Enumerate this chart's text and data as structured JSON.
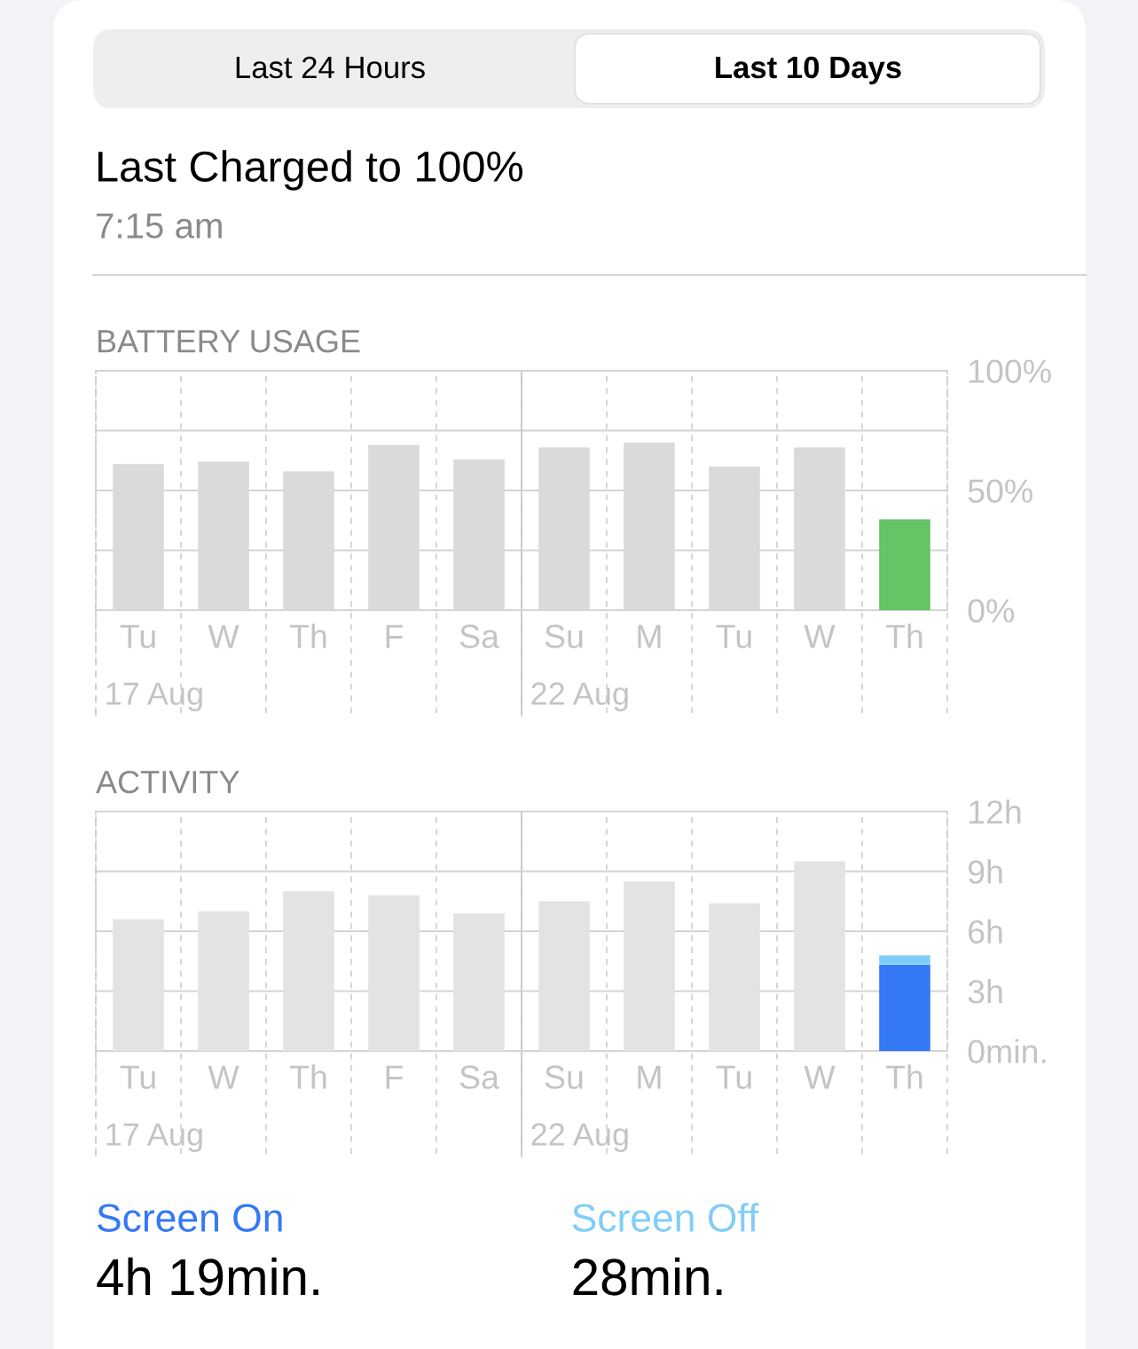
{
  "chart_data": [
    {
      "type": "other",
      "title": "Last Charged to 100%",
      "subtitle": "7:15 am",
      "annotations": [
        "Last 24 Hours",
        "Last 10 Days"
      ]
    },
    {
      "type": "bar",
      "title": "BATTERY USAGE",
      "categories": [
        "Tu",
        "W",
        "Th",
        "F",
        "Sa",
        "Su",
        "M",
        "Tu",
        "W",
        "Th"
      ],
      "values": [
        61,
        62,
        58,
        69,
        63,
        68,
        70,
        60,
        68,
        38
      ],
      "colors": [
        "#dadada",
        "#dadada",
        "#dadada",
        "#dadada",
        "#dadada",
        "#dadada",
        "#dadada",
        "#dadada",
        "#dadada",
        "#65c466"
      ],
      "ylim": [
        0,
        100
      ],
      "yticks": [
        {
          "value": 0,
          "label": "0%"
        },
        {
          "value": 25,
          "label": null
        },
        {
          "value": 50,
          "label": "50%"
        },
        {
          "value": 75,
          "label": null
        },
        {
          "value": 100,
          "label": "100%"
        }
      ],
      "grid": true,
      "ref_lines": [
        {
          "axis": "x",
          "value": "Tu",
          "label": "17 Aug",
          "line_style": "dashed",
          "color": "#cfcfd1"
        },
        {
          "axis": "x",
          "value": "Su",
          "label": "22 Aug",
          "line_style": "solid",
          "color": "#c8c8ca"
        }
      ]
    },
    {
      "type": "bar",
      "title": "ACTIVITY",
      "categories": [
        "Tu",
        "W",
        "Th",
        "F",
        "Sa",
        "Su",
        "M",
        "Tu",
        "W",
        "Th"
      ],
      "stacked": true,
      "series": [
        {
          "color": "#e3e3e3",
          "values": [
            6.6,
            7.0,
            8.0,
            7.8,
            6.9,
            7.5,
            8.5,
            7.4,
            9.5,
            null
          ]
        },
        {
          "name": "Screen On",
          "color": "#3478f6",
          "values": [
            null,
            null,
            null,
            null,
            null,
            null,
            null,
            null,
            null,
            4.32
          ]
        },
        {
          "name": "Screen Off",
          "color": "#81cdf9",
          "values": [
            null,
            null,
            null,
            null,
            null,
            null,
            null,
            null,
            null,
            0.47
          ]
        }
      ],
      "ylim": [
        0,
        12
      ],
      "yticks": [
        {
          "value": 0,
          "label": "0min."
        },
        {
          "value": 3,
          "label": "3h"
        },
        {
          "value": 6,
          "label": "6h"
        },
        {
          "value": 9,
          "label": "9h"
        },
        {
          "value": 12,
          "label": "12h"
        }
      ],
      "grid": true,
      "legend": "bottom",
      "annotations": [
        "4h 19min.",
        "28min."
      ],
      "ref_lines": [
        {
          "axis": "x",
          "value": "Tu",
          "label": "17 Aug",
          "line_style": "dashed",
          "color": "#cfcfd1"
        },
        {
          "axis": "x",
          "value": "Su",
          "label": "22 Aug",
          "line_style": "solid",
          "color": "#c8c8ca"
        }
      ]
    }
  ]
}
